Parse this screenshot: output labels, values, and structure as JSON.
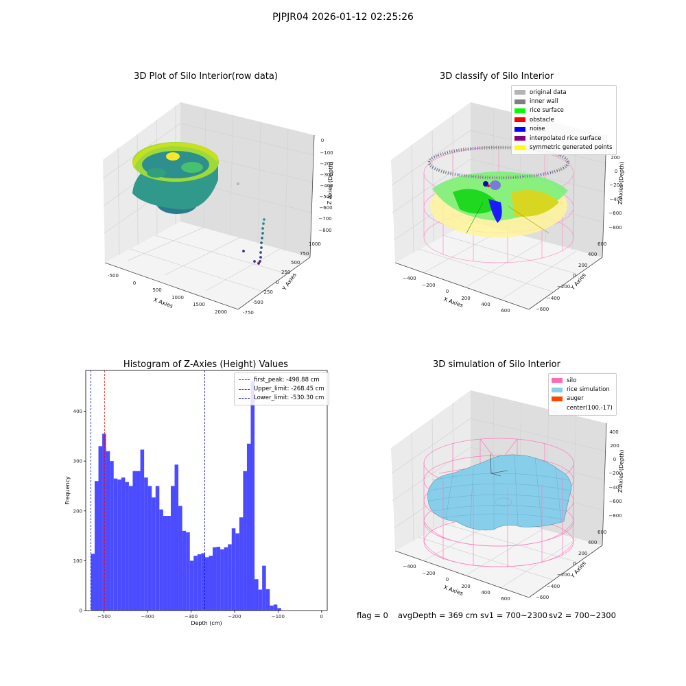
{
  "figure_title": "PJPJR04 2026-01-12 02:25:26",
  "footer": {
    "flag": "flag = 0",
    "avg_depth": "avgDepth = 369 cm",
    "sv1": "sv1 = 700~2300",
    "sv2": "sv2 = 700~2300"
  },
  "colors": {
    "hist_bar": "#4b4bff",
    "peak_line": "#ff0000",
    "limit_line": "#0000cc",
    "pane_left": "#ebebeb",
    "pane_right": "#dedede",
    "pane_floor": "#f4f4f4",
    "grid": "#d4d4d4",
    "silo_wire": "#ff69b4",
    "rice_surface": "#87ceeb"
  },
  "chart_data": [
    {
      "type": "scatter3d",
      "title": "3D Plot of Silo Interior(row data)",
      "xlabel": "X Axies",
      "ylabel": "Y Axies",
      "zlabel": "Z Axies (Depth)",
      "xticks": [
        "-500",
        "0",
        "500",
        "1000",
        "1500",
        "2000"
      ],
      "yticks": [
        "-750",
        "-500",
        "-250",
        "0",
        "250",
        "500",
        "750",
        "1000"
      ],
      "zticks": [
        "0",
        "−100",
        "−200",
        "−300",
        "−400",
        "−500",
        "−600",
        "−700",
        "−800"
      ],
      "colormap": "viridis"
    },
    {
      "type": "scatter3d",
      "title": "3D classify of Silo Interior",
      "xlabel": "X Axies",
      "ylabel": "Y Axies",
      "zlabel": "Z Axies (Depth)",
      "xticks": [
        "−400",
        "−200",
        "0",
        "200",
        "400",
        "600"
      ],
      "yticks": [
        "−600",
        "−400",
        "−200",
        "0",
        "200",
        "400",
        "600"
      ],
      "zticks": [
        "200",
        "0",
        "−200",
        "−400",
        "−600",
        "−800"
      ],
      "legend_position": "top-right",
      "legend": [
        {
          "label": "original data",
          "color": "#b4b4b4"
        },
        {
          "label": "inner wall",
          "color": "#808080"
        },
        {
          "label": "rice surface",
          "color": "#00ff00"
        },
        {
          "label": "obstacle",
          "color": "#ff0000"
        },
        {
          "label": "noise",
          "color": "#0000ff"
        },
        {
          "label": "interpolated rice surface",
          "color": "#800080"
        },
        {
          "label": "symmetric generated points",
          "color": "#ffff00"
        }
      ]
    },
    {
      "type": "bar",
      "title": "Histogram of Z-Axies (Height) Values",
      "xlabel": "Depth (cm)",
      "ylabel": "Frequency",
      "xlim": [
        -542,
        13
      ],
      "ylim": [
        0,
        482
      ],
      "xticks": [
        -500,
        -400,
        -300,
        -200,
        -100,
        0
      ],
      "xtick_labels": [
        "−500",
        "−400",
        "−300",
        "−200",
        "−100",
        "0"
      ],
      "yticks": [
        0,
        100,
        200,
        300,
        400
      ],
      "bin_start": -530.3,
      "bin_width": 8.75,
      "values": [
        114,
        260,
        330,
        355,
        320,
        300,
        265,
        263,
        267,
        258,
        250,
        280,
        280,
        323,
        267,
        250,
        227,
        250,
        203,
        190,
        190,
        250,
        293,
        210,
        160,
        157,
        100,
        110,
        113,
        115,
        107,
        110,
        127,
        128,
        123,
        127,
        133,
        165,
        155,
        187,
        280,
        335,
        460,
        63,
        42,
        90,
        43,
        10,
        12,
        5
      ],
      "legend_position": "top-right",
      "lines": [
        {
          "label": "first_peak: -498.88 cm",
          "x": -498.88,
          "color": "#ff0000"
        },
        {
          "label": "Upper_limit: -268.45 cm",
          "x": -268.45,
          "color": "#0000cc"
        },
        {
          "label": "Lower_limit: -530.30 cm",
          "x": -530.3,
          "color": "#0000cc"
        }
      ]
    },
    {
      "type": "surface3d",
      "title": "3D simulation of Silo Interior",
      "xlabel": "X Axies",
      "ylabel": "Y Axies",
      "zlabel": "Z Axies (Depth)",
      "xticks": [
        "−400",
        "−200",
        "0",
        "200",
        "400",
        "600"
      ],
      "yticks": [
        "−600",
        "−400",
        "−200",
        "0",
        "200",
        "400",
        "600"
      ],
      "zticks": [
        "400",
        "200",
        "0",
        "−200",
        "−400",
        "−600",
        "−800"
      ],
      "legend_position": "top-right",
      "legend": [
        {
          "label": "silo",
          "color": "#ff69b4"
        },
        {
          "label": "rice simulation",
          "color": "#87ceeb"
        },
        {
          "label": "auger",
          "color": "#ff4500"
        },
        {
          "label": "center(100,-17)",
          "color": ""
        }
      ]
    }
  ]
}
